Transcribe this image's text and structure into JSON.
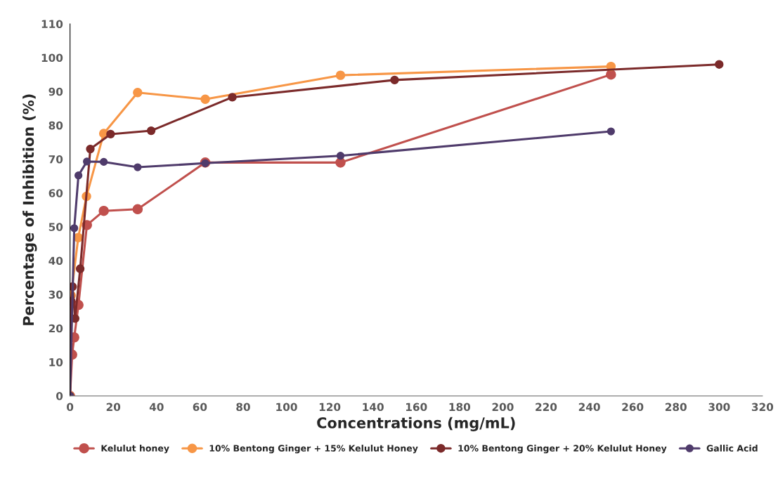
{
  "chart_data": {
    "type": "line",
    "xlabel": "Concentrations (mg/mL)",
    "ylabel": "Percentage of Inhibition (%)",
    "xlim": [
      0,
      320
    ],
    "xticks": [
      0,
      20,
      40,
      60,
      80,
      100,
      120,
      140,
      160,
      180,
      200,
      220,
      240,
      260,
      280,
      300,
      320
    ],
    "ylim": [
      0,
      110
    ],
    "yticks": [
      0,
      10,
      20,
      30,
      40,
      50,
      60,
      70,
      80,
      90,
      100,
      110
    ],
    "marker": "circle",
    "line_style": "solid",
    "grid": false,
    "legend": "bottom",
    "series": [
      {
        "name": "Kelulut honey",
        "color": "#c0504d",
        "x": [
          0,
          0.98,
          1.95,
          3.9,
          7.8,
          15.6,
          31.25,
          62.5,
          125,
          250
        ],
        "values": [
          0,
          12.2,
          17.3,
          26.9,
          50.5,
          54.7,
          55.2,
          69,
          69,
          95
        ]
      },
      {
        "name": "10% Bentong Ginger + 15% Kelulut Honey",
        "color": "#f79646",
        "x": [
          0,
          0.5,
          3.8,
          7.6,
          15.6,
          31.25,
          62.5,
          125,
          250
        ],
        "values": [
          0,
          29.7,
          46.8,
          59,
          77.6,
          89.7,
          87.7,
          94.8,
          97.4
        ]
      },
      {
        "name": "10% Bentong Ginger + 20% Kelulut Honey",
        "color": "#7b2a2a",
        "x": [
          0,
          0.59,
          1.17,
          2.34,
          4.69,
          9.38,
          18.75,
          37.5,
          75,
          150,
          300
        ],
        "values": [
          0,
          28,
          32.3,
          22.9,
          37.6,
          73,
          77.4,
          78.4,
          88.3,
          93.4,
          98
        ]
      },
      {
        "name": "Gallic Acid",
        "color": "#4f3b6b",
        "x": [
          0,
          1.95,
          3.9,
          7.8,
          15.6,
          31.25,
          62.5,
          125,
          250
        ],
        "values": [
          0,
          49.6,
          65.2,
          69.3,
          69.2,
          67.6,
          68.8,
          71,
          78.2
        ]
      }
    ]
  }
}
